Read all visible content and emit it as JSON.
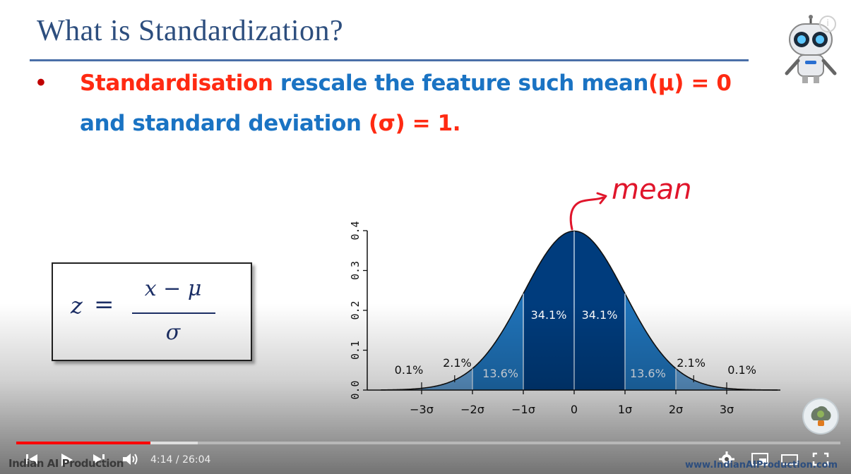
{
  "slide": {
    "title": "What is Standardization?",
    "bullet_char": "•",
    "line1": {
      "part1": "Standardisation",
      "part2": " rescale the feature such mean",
      "part3": "(μ) = 0"
    },
    "line2": {
      "part1": "and standard deviation ",
      "part2": "(σ) = 1."
    },
    "formula": {
      "lhs": "z",
      "eq": "=",
      "numerator": "x − μ",
      "denominator": "σ"
    },
    "annotation": "mean"
  },
  "chart_data": {
    "type": "area",
    "distribution": "standard normal",
    "y_ticks": [
      "0.0",
      "0.1",
      "0.2",
      "0.3",
      "0.4"
    ],
    "ylim": [
      0,
      0.4
    ],
    "x_ticks": [
      "−3σ",
      "−2σ",
      "−1σ",
      "0",
      "1σ",
      "2σ",
      "3σ"
    ],
    "xlim": [
      -3.2,
      4.0
    ],
    "regions": [
      {
        "from": -1,
        "to": 0,
        "label": "34.1%",
        "color": "#003c7d"
      },
      {
        "from": 0,
        "to": 1,
        "label": "34.1%",
        "color": "#003c7d"
      },
      {
        "from": -2,
        "to": -1,
        "label": "13.6%",
        "color": "#1f72b8"
      },
      {
        "from": 1,
        "to": 2,
        "label": "13.6%",
        "color": "#1f72b8"
      },
      {
        "from": -3,
        "to": -2,
        "label": "2.1%",
        "color": "#5f9bd0"
      },
      {
        "from": 2,
        "to": 3,
        "label": "2.1%",
        "color": "#5f9bd0"
      },
      {
        "from": -4,
        "to": -3,
        "label": "0.1%",
        "color": "#9ec4e6"
      },
      {
        "from": 3,
        "to": 4,
        "label": "0.1%",
        "color": "#9ec4e6"
      }
    ]
  },
  "player": {
    "current_time": "4:14",
    "separator": " / ",
    "duration": "26:04",
    "progress": 0.163,
    "buffered": 0.22,
    "colors": {
      "progress": "#ff0000"
    },
    "icons": [
      "previous-icon",
      "play-icon",
      "next-icon",
      "volume-icon",
      "settings-icon",
      "miniplayer-icon",
      "theater-icon",
      "fullscreen-icon",
      "info-icon"
    ]
  },
  "watermarks": {
    "left": "Indian AI Production",
    "right": "www.IndianAIProduction.com"
  }
}
